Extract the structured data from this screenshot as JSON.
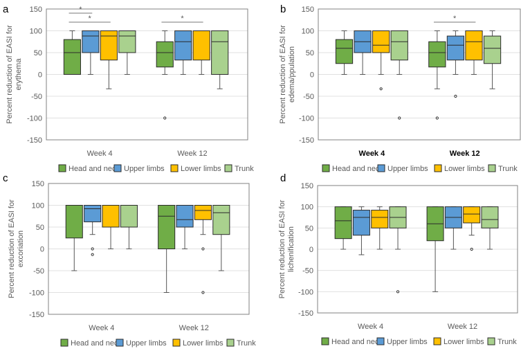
{
  "chart_data": [
    {
      "panel_label": "a",
      "type": "box",
      "ylabel": "Percent reduction of EASI for erythema",
      "ylim": [
        -150,
        150
      ],
      "yticks": [
        "150",
        "100",
        "50",
        "0",
        "-50",
        "-100",
        "-150"
      ],
      "categories": [
        "Week 4",
        "Week 12"
      ],
      "category_bold": false,
      "grid": true,
      "legend_placement": "bottom",
      "series_names": [
        "Head and neck",
        "Upper limbs",
        "Lower limbs",
        "Trunk"
      ],
      "series_colors": [
        "#70AD47",
        "#5B9BD5",
        "#FFC000",
        "#A9D18E"
      ],
      "boxes": [
        [
          {
            "min": 0,
            "q1": 0,
            "median": 50,
            "q3": 80,
            "max": 100,
            "outliers": []
          },
          {
            "min": 0,
            "q1": 50,
            "median": 88,
            "q3": 100,
            "max": 100,
            "outliers": []
          },
          {
            "min": -33,
            "q1": 33,
            "median": 88,
            "q3": 100,
            "max": 100,
            "outliers": []
          },
          {
            "min": 0,
            "q1": 50,
            "median": 88,
            "q3": 100,
            "max": 100,
            "outliers": []
          }
        ],
        [
          {
            "min": 0,
            "q1": 17,
            "median": 50,
            "q3": 75,
            "max": 100,
            "outliers": [
              -100
            ]
          },
          {
            "min": 0,
            "q1": 33,
            "median": 75,
            "q3": 100,
            "max": 100,
            "outliers": []
          },
          {
            "min": 0,
            "q1": 33,
            "median": 100,
            "q3": 100,
            "max": 100,
            "outliers": []
          },
          {
            "min": -33,
            "q1": 0,
            "median": 75,
            "q3": 100,
            "max": 100,
            "outliers": []
          }
        ]
      ],
      "significance": [
        {
          "category": 0,
          "from": 0,
          "to": 1,
          "label": "*",
          "level": 2
        },
        {
          "category": 0,
          "from": 0,
          "to": 2,
          "label": "*",
          "level": 1
        },
        {
          "category": 1,
          "from": 0,
          "to": 2,
          "label": "*",
          "level": 1
        }
      ]
    },
    {
      "panel_label": "b",
      "type": "box",
      "ylabel": "Percent reduction of EASI for edema/ppulation",
      "ylim": [
        -150,
        150
      ],
      "yticks": [
        "150",
        "100",
        "50",
        "0",
        "-50",
        "-100",
        "-150"
      ],
      "categories": [
        "Week 4",
        "Week 12"
      ],
      "category_bold": true,
      "grid": true,
      "legend_placement": "bottom",
      "series_names": [
        "Head and neck",
        "Upper limbs",
        "Lower limbs",
        "Trunk"
      ],
      "series_colors": [
        "#70AD47",
        "#5B9BD5",
        "#FFC000",
        "#A9D18E"
      ],
      "boxes": [
        [
          {
            "min": 0,
            "q1": 25,
            "median": 60,
            "q3": 80,
            "max": 100,
            "outliers": []
          },
          {
            "min": 0,
            "q1": 50,
            "median": 75,
            "q3": 100,
            "max": 100,
            "outliers": []
          },
          {
            "min": 0,
            "q1": 50,
            "median": 67,
            "q3": 100,
            "max": 100,
            "outliers": [
              -33
            ]
          },
          {
            "min": 0,
            "q1": 33,
            "median": 75,
            "q3": 100,
            "max": 100,
            "outliers": [
              -100
            ]
          }
        ],
        [
          {
            "min": -33,
            "q1": 17,
            "median": 50,
            "q3": 75,
            "max": 100,
            "outliers": [
              -100
            ]
          },
          {
            "min": 0,
            "q1": 33,
            "median": 67,
            "q3": 88,
            "max": 100,
            "outliers": [
              -50
            ]
          },
          {
            "min": 0,
            "q1": 33,
            "median": 75,
            "q3": 100,
            "max": 100,
            "outliers": []
          },
          {
            "min": -33,
            "q1": 25,
            "median": 60,
            "q3": 88,
            "max": 100,
            "outliers": []
          }
        ]
      ],
      "significance": [
        {
          "category": 1,
          "from": 0,
          "to": 2,
          "label": "*",
          "level": 1
        }
      ]
    },
    {
      "panel_label": "c",
      "type": "box",
      "ylabel": "Percent reduction of EASI for excoriation",
      "ylim": [
        -150,
        150
      ],
      "yticks": [
        "150",
        "100",
        "50",
        "0",
        "-50",
        "-100",
        "-150"
      ],
      "categories": [
        "Week 4",
        "Week 12"
      ],
      "category_bold": false,
      "grid": true,
      "legend_placement": "bottom",
      "series_names": [
        "Head and neck",
        "Upper limbs",
        "Lower limbs",
        "Trunk"
      ],
      "series_colors": [
        "#70AD47",
        "#5B9BD5",
        "#FFC000",
        "#A9D18E"
      ],
      "boxes": [
        [
          {
            "min": -50,
            "q1": 25,
            "median": 100,
            "q3": 100,
            "max": 100,
            "outliers": []
          },
          {
            "min": 33,
            "q1": 62,
            "median": 92,
            "q3": 100,
            "max": 100,
            "outliers": [
              0,
              -13
            ]
          },
          {
            "min": 0,
            "q1": 50,
            "median": 100,
            "q3": 100,
            "max": 100,
            "outliers": []
          },
          {
            "min": 0,
            "q1": 50,
            "median": 100,
            "q3": 100,
            "max": 100,
            "outliers": []
          }
        ],
        [
          {
            "min": -100,
            "q1": 0,
            "median": 75,
            "q3": 100,
            "max": 100,
            "outliers": []
          },
          {
            "min": 0,
            "q1": 50,
            "median": 67,
            "q3": 100,
            "max": 100,
            "outliers": []
          },
          {
            "min": 33,
            "q1": 67,
            "median": 88,
            "q3": 100,
            "max": 100,
            "outliers": [
              0,
              -100
            ]
          },
          {
            "min": -50,
            "q1": 33,
            "median": 83,
            "q3": 100,
            "max": 100,
            "outliers": []
          }
        ]
      ],
      "significance": []
    },
    {
      "panel_label": "d",
      "type": "box",
      "ylabel": "Percent reduction of EASI for lichenification",
      "ylim": [
        -150,
        150
      ],
      "yticks": [
        "150",
        "100",
        "50",
        "0",
        "-50",
        "-100",
        "-150"
      ],
      "categories": [
        "Week 4",
        "Week 12"
      ],
      "category_bold": false,
      "grid": true,
      "legend_placement": "bottom",
      "series_names": [
        "Head and neck",
        "Upper limbs",
        "Lower limbs",
        "Trunk"
      ],
      "series_colors": [
        "#70AD47",
        "#5B9BD5",
        "#FFC000",
        "#A9D18E"
      ],
      "boxes": [
        [
          {
            "min": 0,
            "q1": 25,
            "median": 67,
            "q3": 100,
            "max": 100,
            "outliers": []
          },
          {
            "min": -13,
            "q1": 33,
            "median": 75,
            "q3": 92,
            "max": 100,
            "outliers": []
          },
          {
            "min": 0,
            "q1": 50,
            "median": 75,
            "q3": 92,
            "max": 100,
            "outliers": []
          },
          {
            "min": 0,
            "q1": 50,
            "median": 75,
            "q3": 100,
            "max": 100,
            "outliers": [
              -100
            ]
          }
        ],
        [
          {
            "min": -100,
            "q1": 20,
            "median": 60,
            "q3": 100,
            "max": 100,
            "outliers": []
          },
          {
            "min": 0,
            "q1": 50,
            "median": 75,
            "q3": 100,
            "max": 100,
            "outliers": []
          },
          {
            "min": 33,
            "q1": 62,
            "median": 83,
            "q3": 100,
            "max": 100,
            "outliers": [
              0
            ]
          },
          {
            "min": 0,
            "q1": 50,
            "median": 70,
            "q3": 100,
            "max": 100,
            "outliers": []
          }
        ]
      ],
      "significance": []
    }
  ]
}
